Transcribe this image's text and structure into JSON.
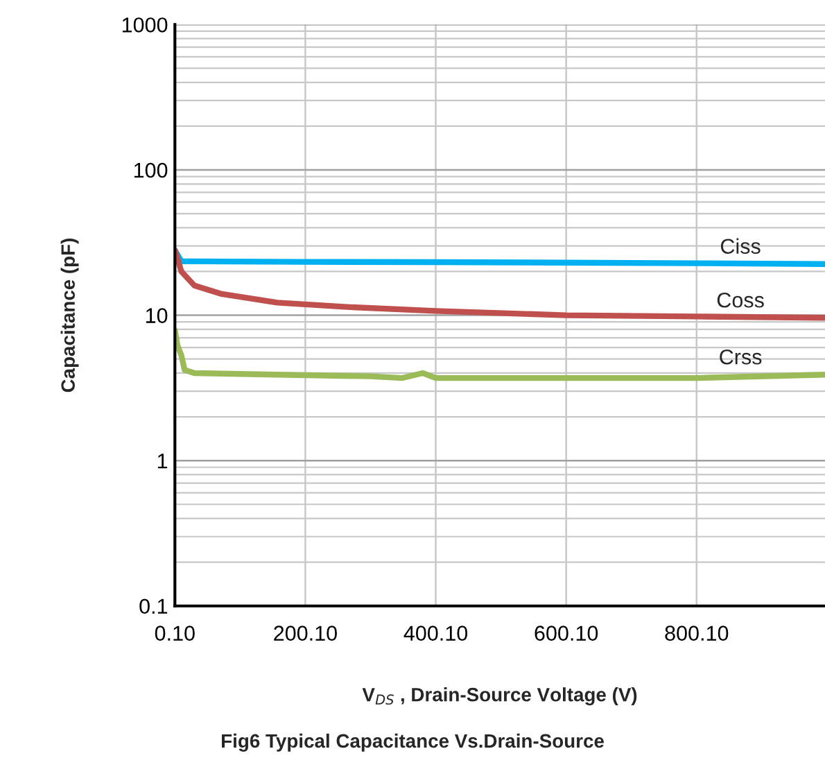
{
  "chart_data": {
    "type": "line",
    "xlabel": "V$_{DS}$ , Drain-Source Voltage (V)",
    "ylabel": "Capacitance (pF)",
    "annotations": [
      "Fig6 Typical Capacitance Vs.Drain-Source"
    ],
    "log": "y",
    "grid": true,
    "legend": false,
    "marker": "none",
    "line_style": "solid",
    "xlim": [
      0.1,
      997
    ],
    "ylim": [
      0.1,
      1000
    ],
    "xticks": [
      {
        "value": 0.1,
        "label": "0.10"
      },
      {
        "value": 200.1,
        "label": "200.10"
      },
      {
        "value": 400.1,
        "label": "400.10"
      },
      {
        "value": 600.1,
        "label": "600.10"
      },
      {
        "value": 800.1,
        "label": "800.10"
      }
    ],
    "yticks": [
      {
        "value": 0.1,
        "label": "0.1"
      },
      1,
      10,
      100,
      1000
    ],
    "series": [
      {
        "name": "Ciss",
        "color": "#00b0f0",
        "x": [
          0.1,
          10,
          30,
          200,
          400,
          600,
          800,
          997
        ],
        "values": [
          28,
          23.5,
          23.5,
          23.3,
          23.2,
          23,
          22.8,
          22.5
        ]
      },
      {
        "name": "Coss",
        "color": "#c0504d",
        "x": [
          0.1,
          10,
          30,
          72,
          157,
          264,
          400,
          600,
          800,
          997
        ],
        "values": [
          28,
          20,
          16,
          14,
          12.2,
          11.4,
          10.7,
          10,
          9.8,
          9.6
        ]
      },
      {
        "name": "Crss",
        "color": "#9bbb59",
        "x": [
          0.1,
          4,
          10,
          15,
          30,
          157,
          300,
          349,
          380,
          400,
          600,
          800,
          997
        ],
        "values": [
          7.9,
          6.2,
          5.3,
          4.2,
          4.0,
          3.9,
          3.8,
          3.7,
          4.0,
          3.7,
          3.7,
          3.7,
          3.9
        ]
      }
    ]
  }
}
